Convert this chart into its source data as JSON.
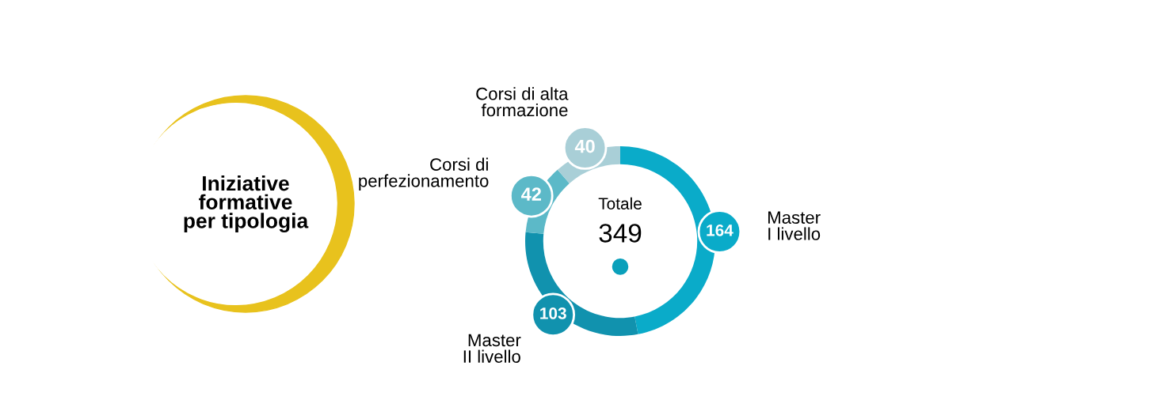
{
  "chart_data": {
    "type": "donut",
    "title": "Iniziative\nformative\nper tipologia",
    "categories": [
      "Master\nI livello",
      "Master\nII livello",
      "Corsi di\nperfezionamento",
      "Corsi di alta\nformazione"
    ],
    "values": [
      164,
      103,
      42,
      40
    ],
    "colors": [
      "#0aabc9",
      "#1192ae",
      "#5cb9c8",
      "#a9cfd7"
    ],
    "data_labels": true,
    "annotations": [
      "Totale",
      "349"
    ]
  }
}
